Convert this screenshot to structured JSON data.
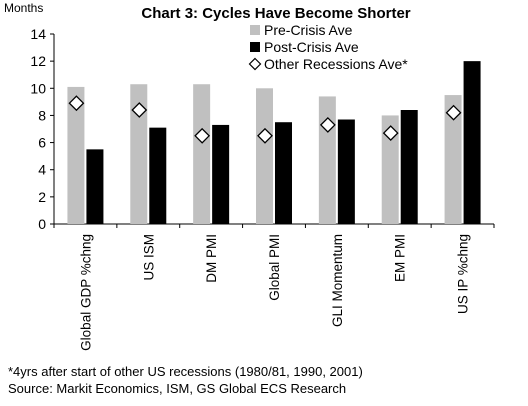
{
  "chart_data": {
    "type": "bar",
    "title": "Chart 3: Cycles Have Become Shorter",
    "units_label": "Months",
    "ylim": [
      0,
      14
    ],
    "yticks": [
      0,
      2,
      4,
      6,
      8,
      10,
      12,
      14
    ],
    "grid": false,
    "legend_position": "top-right",
    "categories": [
      "Global GDP %chng",
      "US ISM",
      "DM PMI",
      "Global PMI",
      "GLI Momentum",
      "EM PMI",
      "US IP %chng"
    ],
    "series": [
      {
        "name": "Pre-Crisis Ave",
        "kind": "bar",
        "color": "#c0c0c0",
        "values": [
          10.1,
          10.3,
          10.3,
          10.0,
          9.4,
          8.0,
          9.5
        ]
      },
      {
        "name": "Post-Crisis Ave",
        "kind": "bar",
        "color": "#000000",
        "values": [
          5.5,
          7.1,
          7.3,
          7.5,
          7.7,
          8.4,
          12.0
        ]
      },
      {
        "name": "Other Recessions Ave*",
        "kind": "marker",
        "color": "#ffffff",
        "values": [
          8.9,
          8.4,
          6.5,
          6.5,
          7.3,
          6.7,
          8.2
        ]
      }
    ]
  },
  "footnotes": {
    "note": "*4yrs after start of other US recessions (1980/81, 1990, 2001)",
    "source": "Source: Markit Economics, ISM, GS Global ECS Research"
  }
}
